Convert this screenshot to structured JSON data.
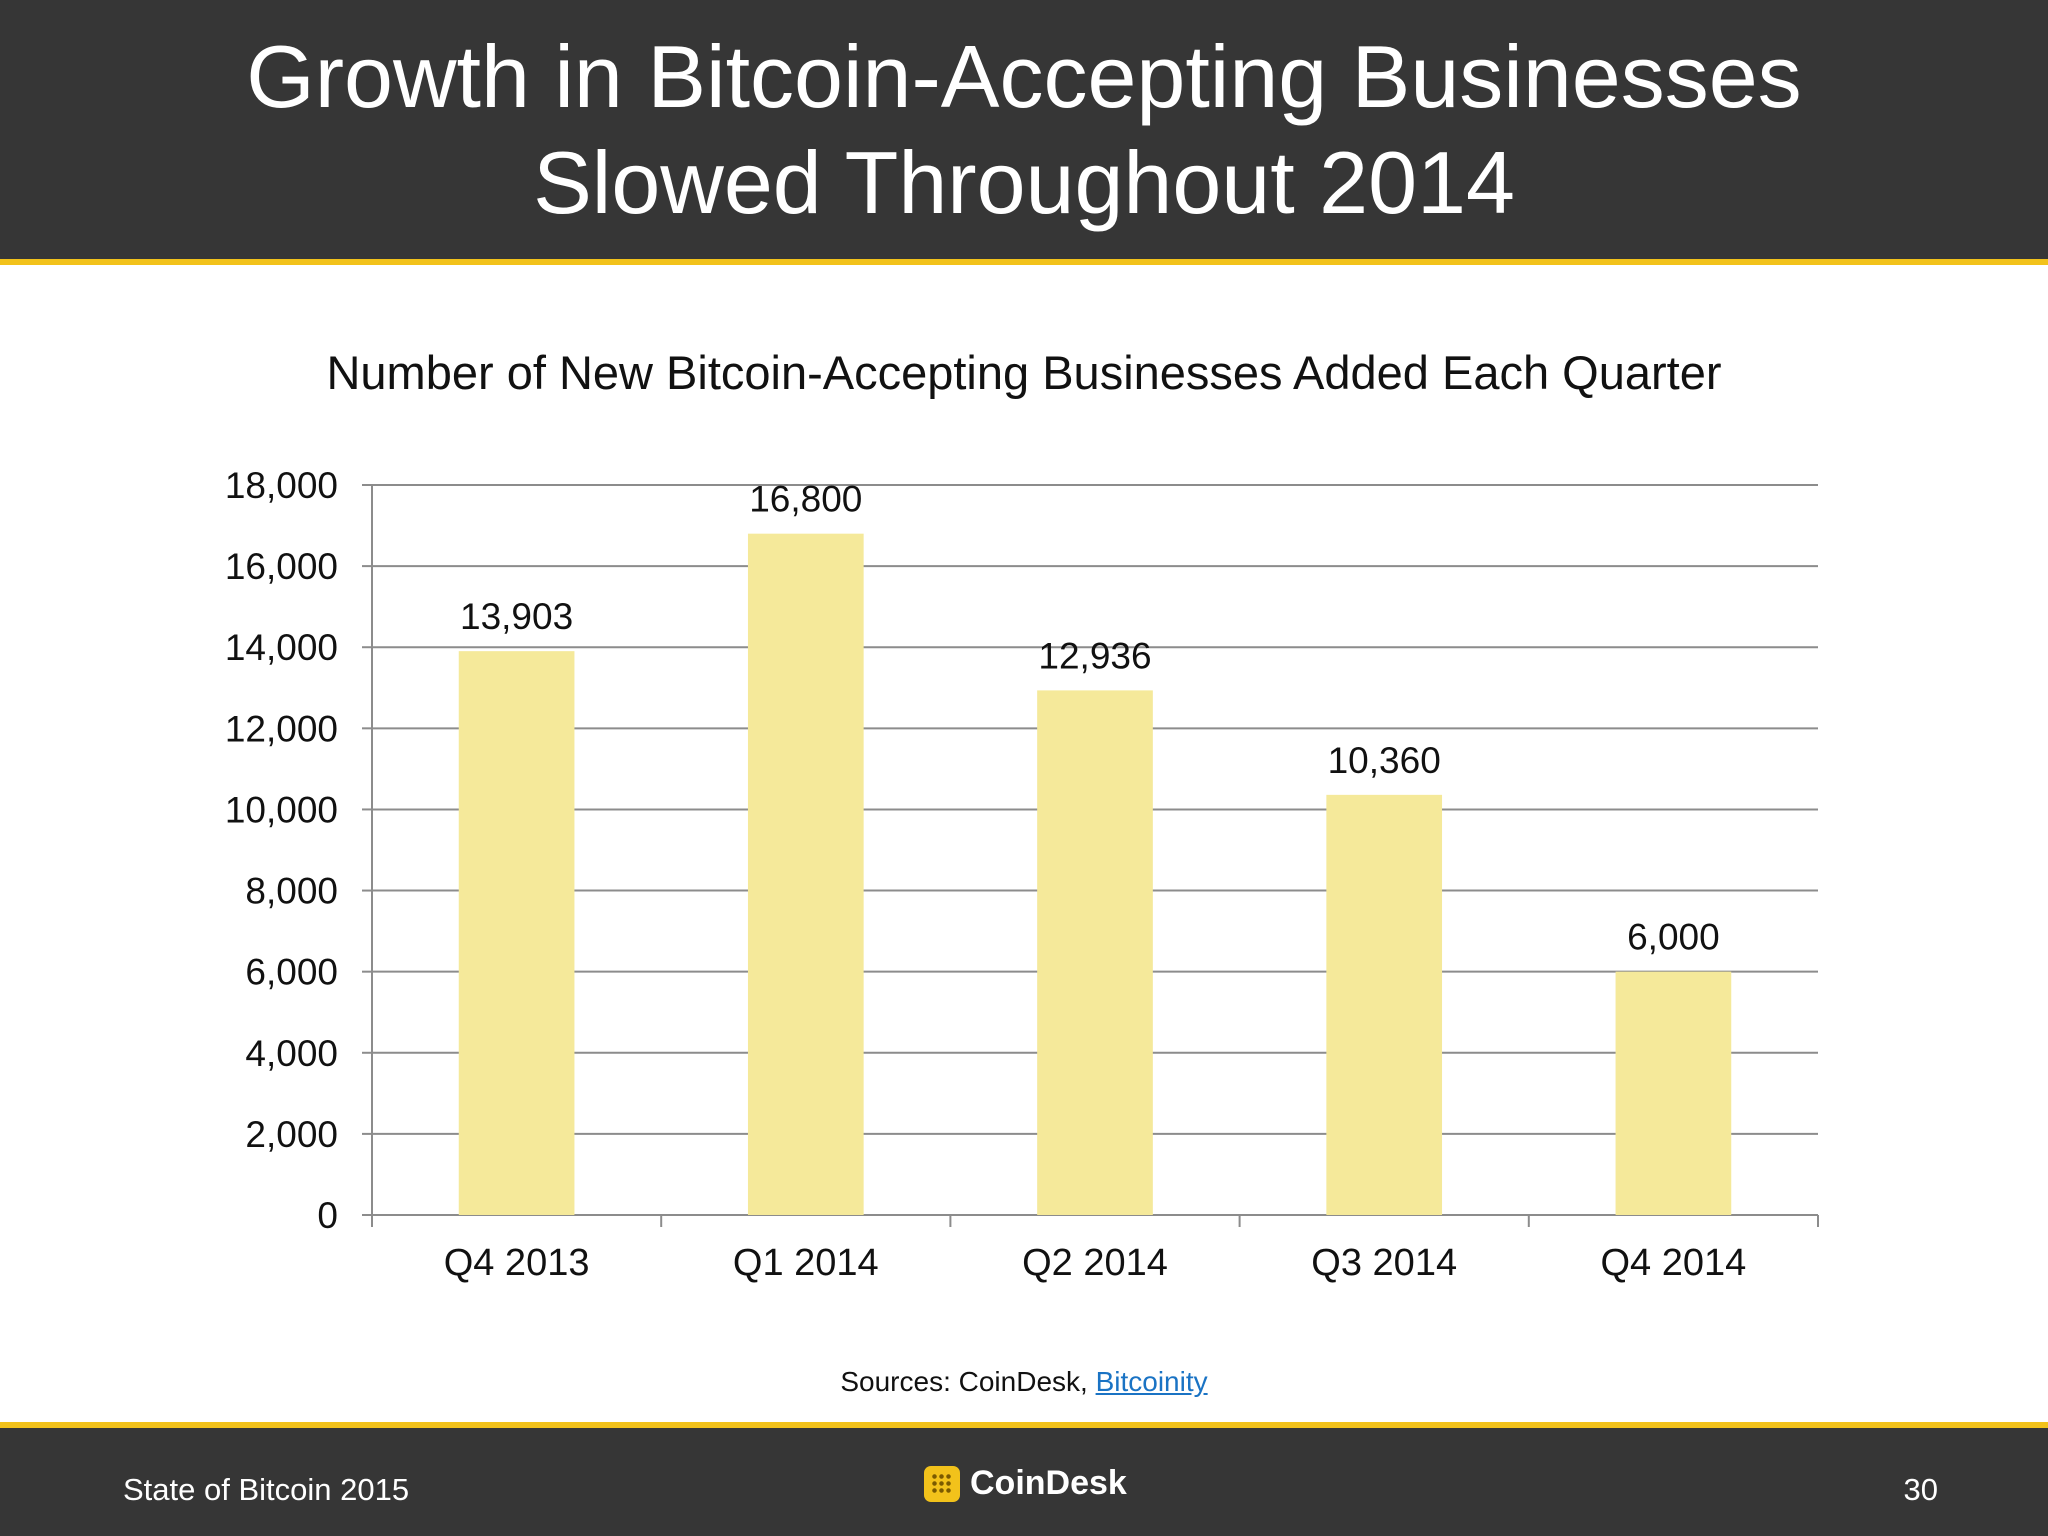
{
  "header": {
    "title_line1": "Growth in Bitcoin-Accepting Businesses",
    "title_line2": "Slowed Throughout 2014"
  },
  "chart_data": {
    "type": "bar",
    "title": "Number of New Bitcoin-Accepting Businesses Added Each Quarter",
    "xlabel": "",
    "ylabel": "",
    "categories": [
      "Q4 2013",
      "Q1 2014",
      "Q2 2014",
      "Q3 2014",
      "Q4 2014"
    ],
    "values": [
      13903,
      16800,
      12936,
      10360,
      6000
    ],
    "data_labels": [
      "13,903",
      "16,800",
      "12,936",
      "10,360",
      "6,000"
    ],
    "ylim": [
      0,
      18000
    ],
    "yticks": [
      0,
      2000,
      4000,
      6000,
      8000,
      10000,
      12000,
      14000,
      16000,
      18000
    ],
    "ytick_labels": [
      "0",
      "2,000",
      "4,000",
      "6,000",
      "8,000",
      "10,000",
      "12,000",
      "14,000",
      "16,000",
      "18,000"
    ],
    "grid": true,
    "bar_color": "#f5e99a",
    "grid_color": "#8c8c8c"
  },
  "sources": {
    "prefix": "Sources: CoinDesk, ",
    "link": "Bitcoinity"
  },
  "footer": {
    "left": "State of Bitcoin 2015",
    "logo_text": "CoinDesk",
    "page_number": "30",
    "accent_color": "#f2c21b"
  }
}
